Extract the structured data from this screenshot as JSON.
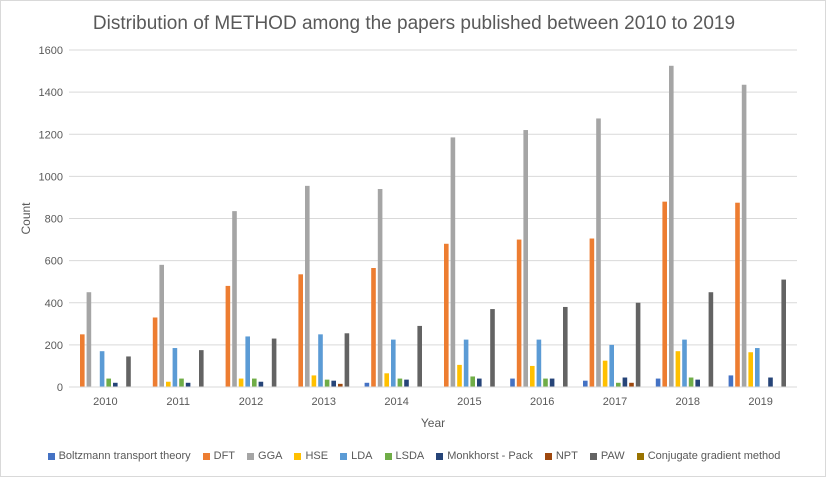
{
  "chart_data": {
    "type": "bar",
    "title": "Distribution of METHOD among the papers published between 2010 to 2019",
    "xlabel": "Year",
    "ylabel": "Count",
    "ylim": [
      0,
      1600
    ],
    "yticks": [
      0,
      200,
      400,
      600,
      800,
      1000,
      1200,
      1400,
      1600
    ],
    "grid": true,
    "legend_position": "bottom",
    "categories": [
      "2010",
      "2011",
      "2012",
      "2013",
      "2014",
      "2015",
      "2016",
      "2017",
      "2018",
      "2019"
    ],
    "series": [
      {
        "name": "Boltzmann transport theory",
        "color": "#4472c4",
        "values": [
          0,
          0,
          0,
          0,
          20,
          0,
          40,
          30,
          40,
          55
        ]
      },
      {
        "name": "DFT",
        "color": "#ed7d31",
        "values": [
          250,
          330,
          480,
          535,
          565,
          680,
          700,
          705,
          880,
          875
        ]
      },
      {
        "name": "GGA",
        "color": "#a5a5a5",
        "values": [
          450,
          580,
          835,
          955,
          940,
          1185,
          1220,
          1275,
          1525,
          1435
        ]
      },
      {
        "name": "HSE",
        "color": "#ffc000",
        "values": [
          0,
          25,
          40,
          55,
          65,
          105,
          100,
          125,
          170,
          165
        ]
      },
      {
        "name": "LDA",
        "color": "#5b9bd5",
        "values": [
          170,
          185,
          240,
          250,
          225,
          225,
          225,
          200,
          225,
          185
        ]
      },
      {
        "name": "LSDA",
        "color": "#70ad47",
        "values": [
          40,
          40,
          40,
          35,
          40,
          50,
          40,
          20,
          45,
          0
        ]
      },
      {
        "name": "Monkhorst - Pack",
        "color": "#264478",
        "values": [
          20,
          20,
          25,
          30,
          35,
          40,
          40,
          45,
          35,
          45
        ]
      },
      {
        "name": "NPT",
        "color": "#9e480e",
        "values": [
          0,
          0,
          0,
          15,
          0,
          0,
          0,
          20,
          0,
          0
        ]
      },
      {
        "name": "PAW",
        "color": "#636363",
        "values": [
          145,
          175,
          230,
          255,
          290,
          370,
          380,
          400,
          450,
          510
        ]
      },
      {
        "name": "Conjugate gradient method",
        "color": "#997300",
        "values": [
          0,
          0,
          0,
          0,
          0,
          0,
          0,
          0,
          0,
          0
        ]
      }
    ]
  }
}
